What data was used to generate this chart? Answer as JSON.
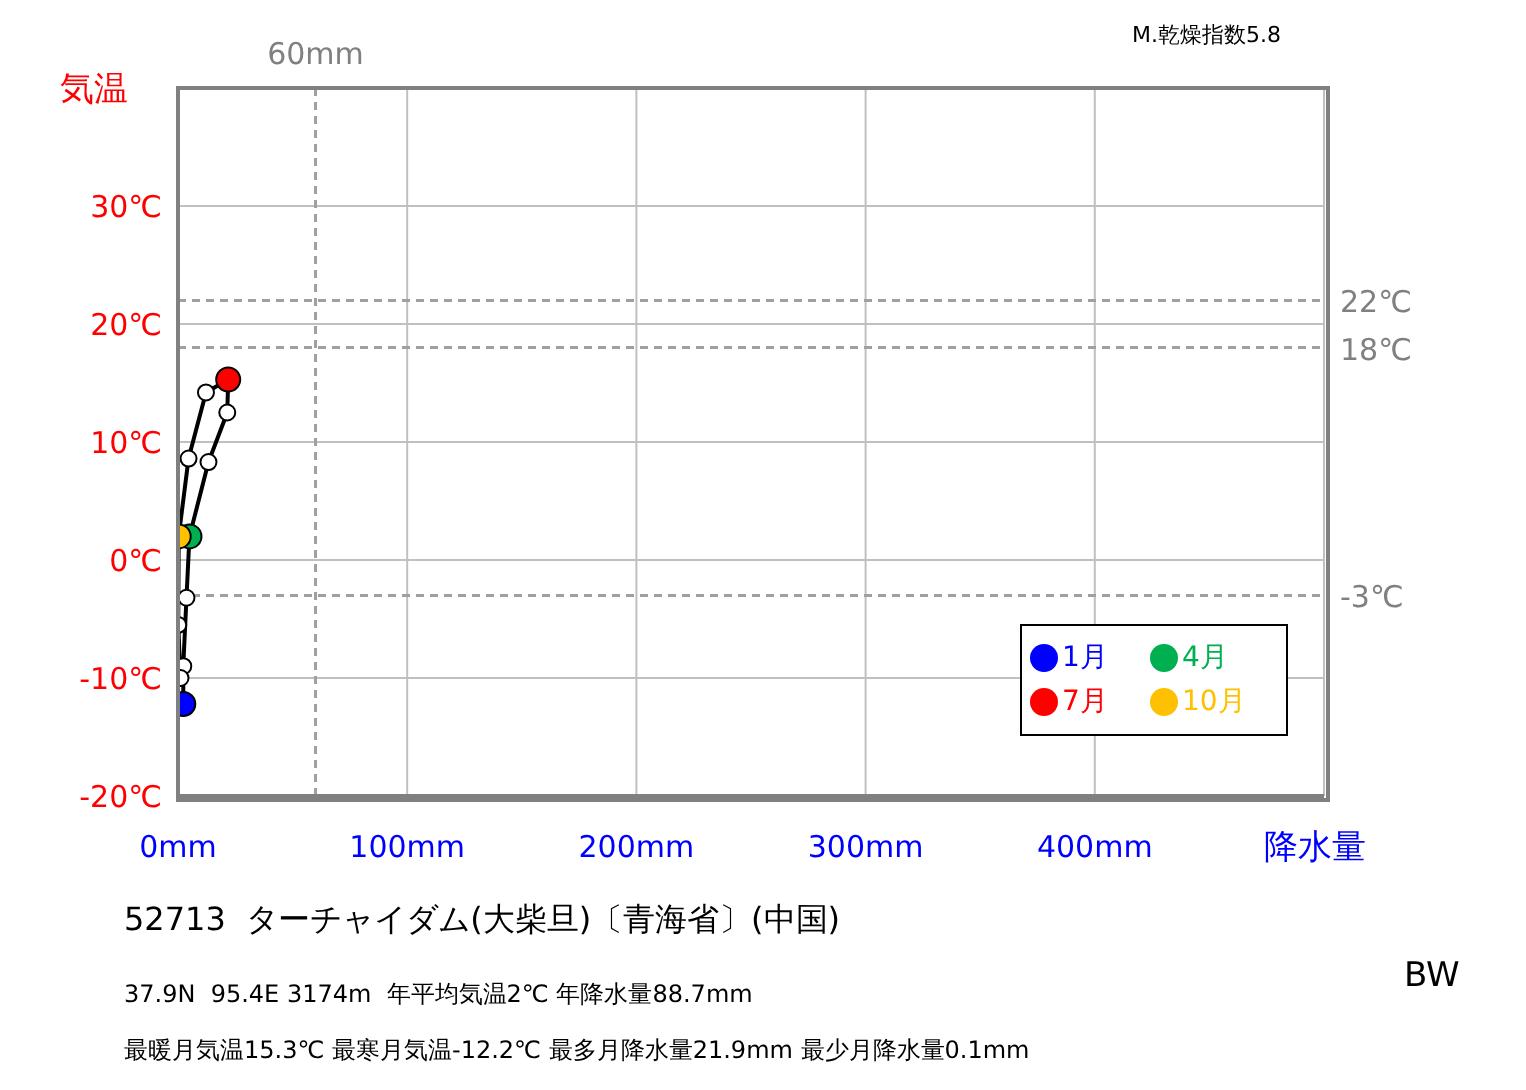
{
  "chart_data": {
    "type": "scatter",
    "title": "52713  ターチャイダム(大柴旦)〔青海省〕(中国)",
    "xlabel": "降水量",
    "ylabel": "気温",
    "annotations": [
      "M.乾燥指数5.8",
      "37.9N  95.4E 3174m  年平均気温2℃ 年降水量88.7mm",
      "最暖月気温15.3℃ 最寒月気温-12.2℃ 最多月降水量21.9mm 最少月降水量0.1mm",
      "BW"
    ],
    "series": [
      {
        "type": "line",
        "color": "#000000",
        "marker": "circle",
        "x": [
          2.3,
          2.3,
          3.7,
          5.0,
          13.3,
          21.5,
          21.9,
          12.2,
          4.6,
          0.3,
          0.1,
          1.1
        ],
        "values": [
          -12.2,
          -9.0,
          -3.2,
          2.0,
          8.3,
          12.5,
          15.3,
          14.2,
          8.6,
          2.0,
          -5.5,
          -10.0
        ],
        "colors": [
          "#0000ff",
          "#ffffff",
          "#ffffff",
          "#00b050",
          "#ffffff",
          "#ffffff",
          "#ff0000",
          "#ffffff",
          "#ffffff",
          "#ffc000",
          "#ffffff",
          "#ffffff"
        ]
      },
      {
        "name": "1月",
        "color": "#0000ff",
        "x": [
          2.3
        ],
        "values": [
          -12.2
        ]
      },
      {
        "name": "4月",
        "color": "#00b050",
        "x": [
          5.0
        ],
        "values": [
          2.0
        ]
      },
      {
        "name": "7月",
        "color": "#ff0000",
        "x": [
          21.9
        ],
        "values": [
          15.3
        ]
      },
      {
        "name": "10月",
        "color": "#ffc000",
        "x": [
          0.3
        ],
        "values": [
          2.0
        ]
      }
    ],
    "xlim": [
      0,
      500
    ],
    "xticks": [
      {
        "value": 0,
        "label": "0mm"
      },
      {
        "value": 100,
        "label": "100mm"
      },
      {
        "value": 200,
        "label": "200mm"
      },
      {
        "value": 300,
        "label": "300mm"
      },
      {
        "value": 400,
        "label": "400mm"
      }
    ],
    "ylim": [
      -20,
      40
    ],
    "yticks": [
      {
        "value": -20,
        "label": "-20℃"
      },
      {
        "value": -10,
        "label": "-10℃"
      },
      {
        "value": 0,
        "label": "0℃"
      },
      {
        "value": 10,
        "label": "10℃"
      },
      {
        "value": 20,
        "label": "20℃"
      },
      {
        "value": 30,
        "label": "30℃"
      }
    ],
    "grid": true,
    "legend": "bottom right",
    "marker": "circle",
    "ref_lines": [
      {
        "axis": "x",
        "value": 60,
        "label": "60mm",
        "color": "#a0a0a0",
        "line_style": "dashed"
      },
      {
        "axis": "y",
        "value": 22,
        "label": "22℃",
        "color": "#a0a0a0",
        "line_style": "dashed"
      },
      {
        "axis": "y",
        "value": 18,
        "label": "18℃",
        "color": "#a0a0a0",
        "line_style": "dashed"
      },
      {
        "axis": "y",
        "value": -3,
        "label": "-3℃",
        "color": "#a0a0a0",
        "line_style": "dashed"
      }
    ]
  }
}
